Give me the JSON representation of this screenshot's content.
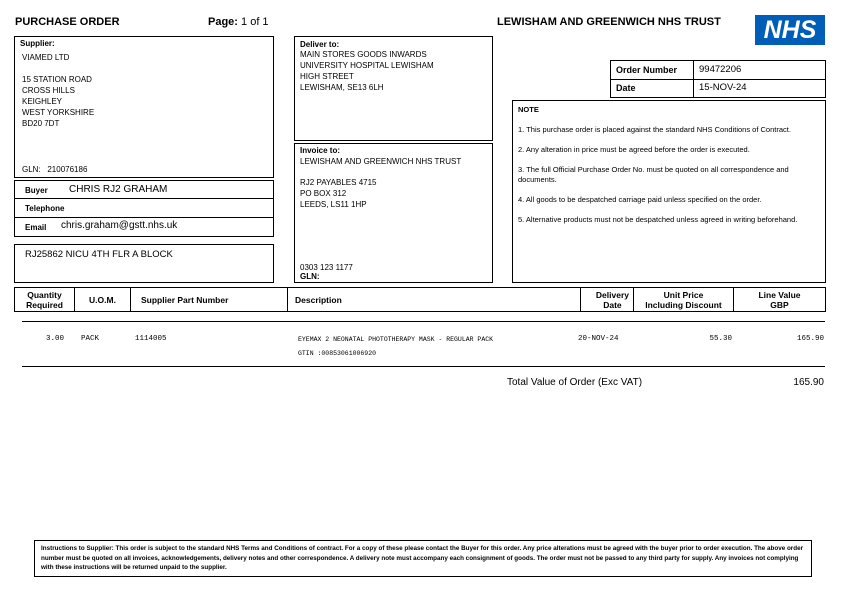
{
  "header": {
    "title": "PURCHASE ORDER",
    "page_label": "Page:",
    "page_value": "1 of 1",
    "trust": "LEWISHAM AND GREENWICH NHS TRUST",
    "logo": "NHS",
    "logo_color": "#005EB8"
  },
  "supplier": {
    "label": "Supplier:",
    "name": "VIAMED LTD",
    "address": [
      "15 STATION ROAD",
      "CROSS HILLS",
      "KEIGHLEY",
      "WEST YORKSHIRE",
      "BD20 7DT"
    ],
    "gln_label": "GLN:",
    "gln": "210076186"
  },
  "buyer": {
    "buyer_label": "Buyer",
    "buyer": "CHRIS RJ2 GRAHAM",
    "telephone_label": "Telephone",
    "telephone": "",
    "email_label": "Email",
    "email": "chris.graham@gstt.nhs.uk"
  },
  "reference": "RJ25862 NICU 4TH FLR A BLOCK",
  "deliver": {
    "label": "Deliver to:",
    "lines": [
      "MAIN STORES GOODS INWARDS",
      "UNIVERSITY HOSPITAL LEWISHAM",
      "HIGH STREET",
      "LEWISHAM, SE13 6LH"
    ]
  },
  "invoice": {
    "label": "Invoice to:",
    "name": "LEWISHAM AND GREENWICH NHS TRUST",
    "lines": [
      "RJ2 PAYABLES 4715",
      "PO BOX 312",
      "LEEDS, LS11 1HP"
    ],
    "phone": "0303 123 1177",
    "gln_label": "GLN:"
  },
  "order": {
    "number_label": "Order Number",
    "number": "99472206",
    "date_label": "Date",
    "date": "15-NOV-24"
  },
  "note": {
    "title": "NOTE",
    "items": [
      "1. This purchase order is placed against the standard NHS Conditions of Contract.",
      "2. Any alteration in price must be agreed before the order is executed.",
      "3. The full Official Purchase Order No. must be quoted on all correspondence and documents.",
      "4. All goods to be despatched carriage paid unless specified on the order.",
      "5. Alternative products must not be despatched unless agreed in writing beforehand."
    ]
  },
  "table": {
    "headers": [
      "Quantity\nRequired",
      "U.O.M.",
      "Supplier Part Number",
      "Description",
      "Delivery\nDate",
      "Unit Price\nIncluding Discount",
      "Line Value\nGBP"
    ],
    "rows": [
      {
        "qty": "3.00",
        "uom": "PACK",
        "part": "1114005",
        "description": "EYEMAX 2 NEONATAL PHOTOTHERAPY MASK - REGULAR PACK",
        "gtin": "GTIN :00853061006920",
        "delivery": "20-NOV-24",
        "unit_price": "55.30",
        "line_value": "165.90"
      }
    ]
  },
  "total": {
    "label": "Total Value of Order (Exc VAT)",
    "value": "165.90"
  },
  "footer": "Instructions to Supplier: This order is subject to the standard NHS Terms and Conditions of contract. For a copy of these please contact the Buyer for this order. Any price alterations must be agreed with the buyer prior to order execution. The above order number must be quoted on all invoices, acknowledgements, delivery notes and other correspondence. A delivery note must accompany each consignment of goods. The order must not be passed to any third party for supply. Any invoices not complying with these instructions will be returned unpaid to the supplier."
}
